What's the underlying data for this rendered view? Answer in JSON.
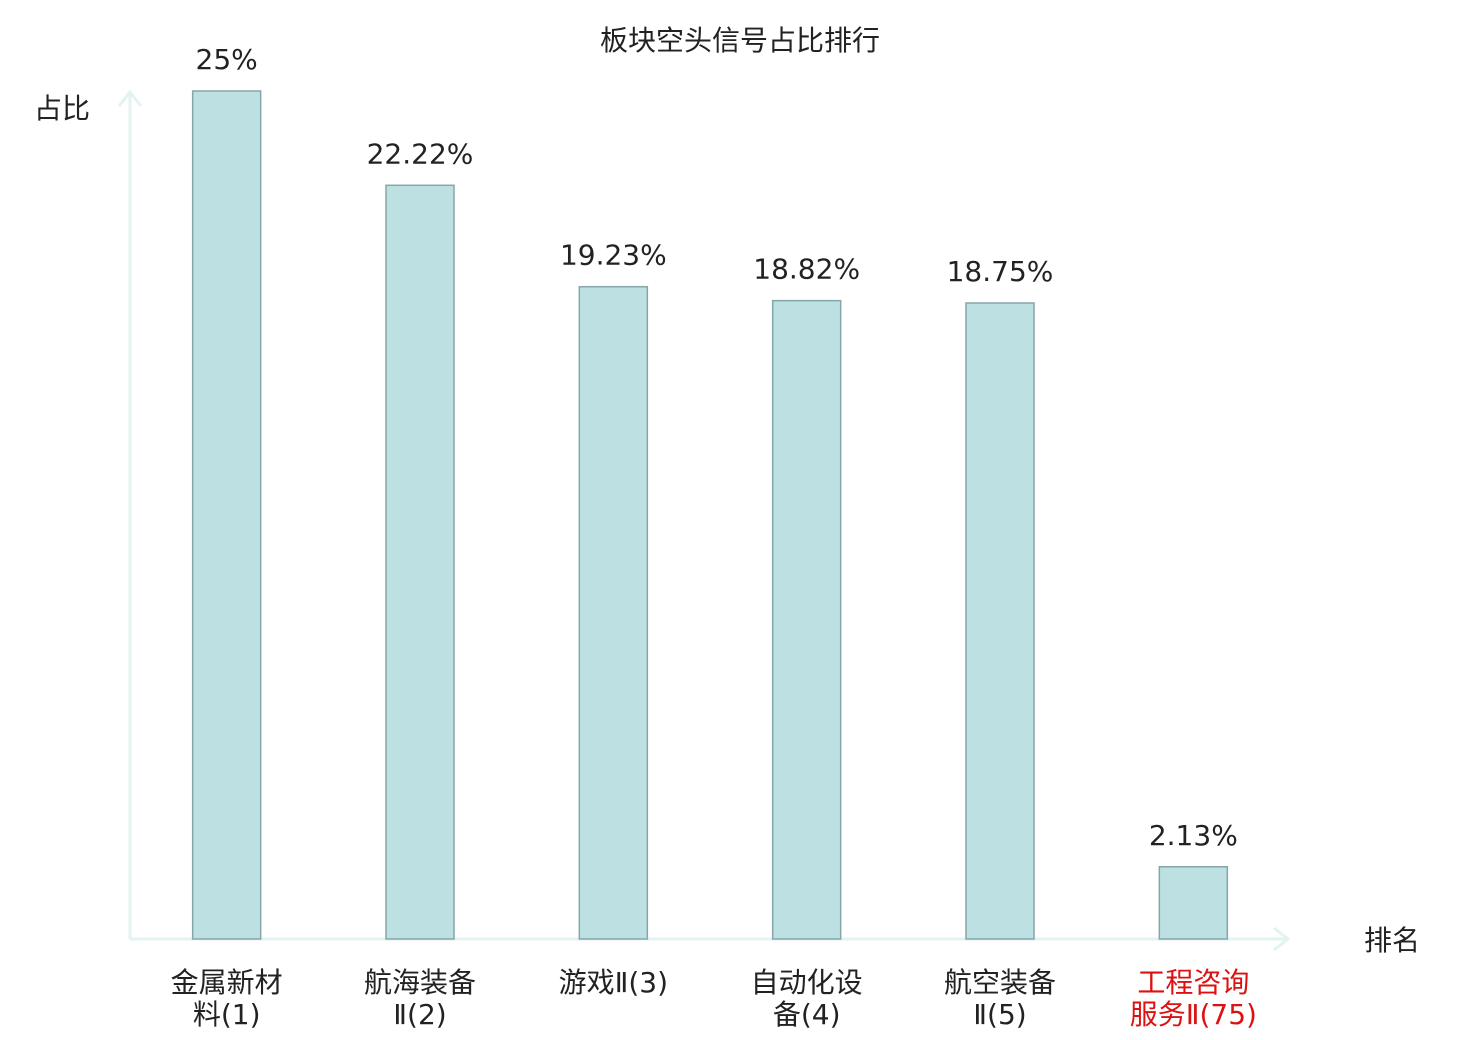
{
  "chart_data": {
    "type": "bar",
    "title": "板块空头信号占比排行",
    "y_label": "占比",
    "x_label": "排名",
    "categories": [
      "金属新材料(1)",
      "航海装备Ⅱ(2)",
      "游戏Ⅱ(3)",
      "自动化设备(4)",
      "航空装备Ⅱ(5)",
      "工程咨询服务Ⅱ(75)"
    ],
    "values": [
      25,
      22.22,
      19.23,
      18.82,
      18.75,
      2.13
    ],
    "value_labels": [
      "25%",
      "22.22%",
      "19.23%",
      "18.82%",
      "18.75%",
      "2.13%"
    ],
    "color": "#bde0e3",
    "edge_color": "#86a6a8",
    "highlight_index": 5,
    "highlight_color": "#dd1111",
    "ylim": [
      0,
      25
    ]
  }
}
